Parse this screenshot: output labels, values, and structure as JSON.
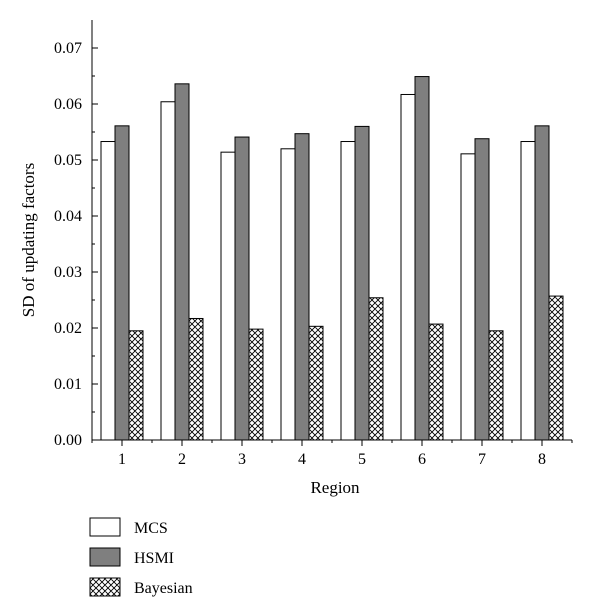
{
  "chart_data": {
    "type": "bar",
    "title": "",
    "xlabel": "Region",
    "ylabel": "SD of updating factors",
    "categories": [
      "1",
      "2",
      "3",
      "4",
      "5",
      "6",
      "7",
      "8"
    ],
    "ylim": [
      0,
      0.075
    ],
    "yticks": [
      "0.00",
      "0.01",
      "0.02",
      "0.03",
      "0.04",
      "0.05",
      "0.06",
      "0.07"
    ],
    "grid": false,
    "legend_position": "bottom-left",
    "series": [
      {
        "name": "MCS",
        "fill": "#ffffff",
        "pattern": "solid",
        "values": [
          0.0533,
          0.0604,
          0.0514,
          0.052,
          0.0533,
          0.0617,
          0.0511,
          0.0533
        ]
      },
      {
        "name": "HSMI",
        "fill": "#7f7f7f",
        "pattern": "solid",
        "values": [
          0.0561,
          0.0636,
          0.0541,
          0.0547,
          0.056,
          0.0649,
          0.0538,
          0.0561
        ]
      },
      {
        "name": "Bayesian",
        "fill": "#ffffff",
        "pattern": "crosshatch",
        "values": [
          0.0195,
          0.0217,
          0.0198,
          0.0203,
          0.0254,
          0.0207,
          0.0195,
          0.0257
        ]
      }
    ]
  }
}
